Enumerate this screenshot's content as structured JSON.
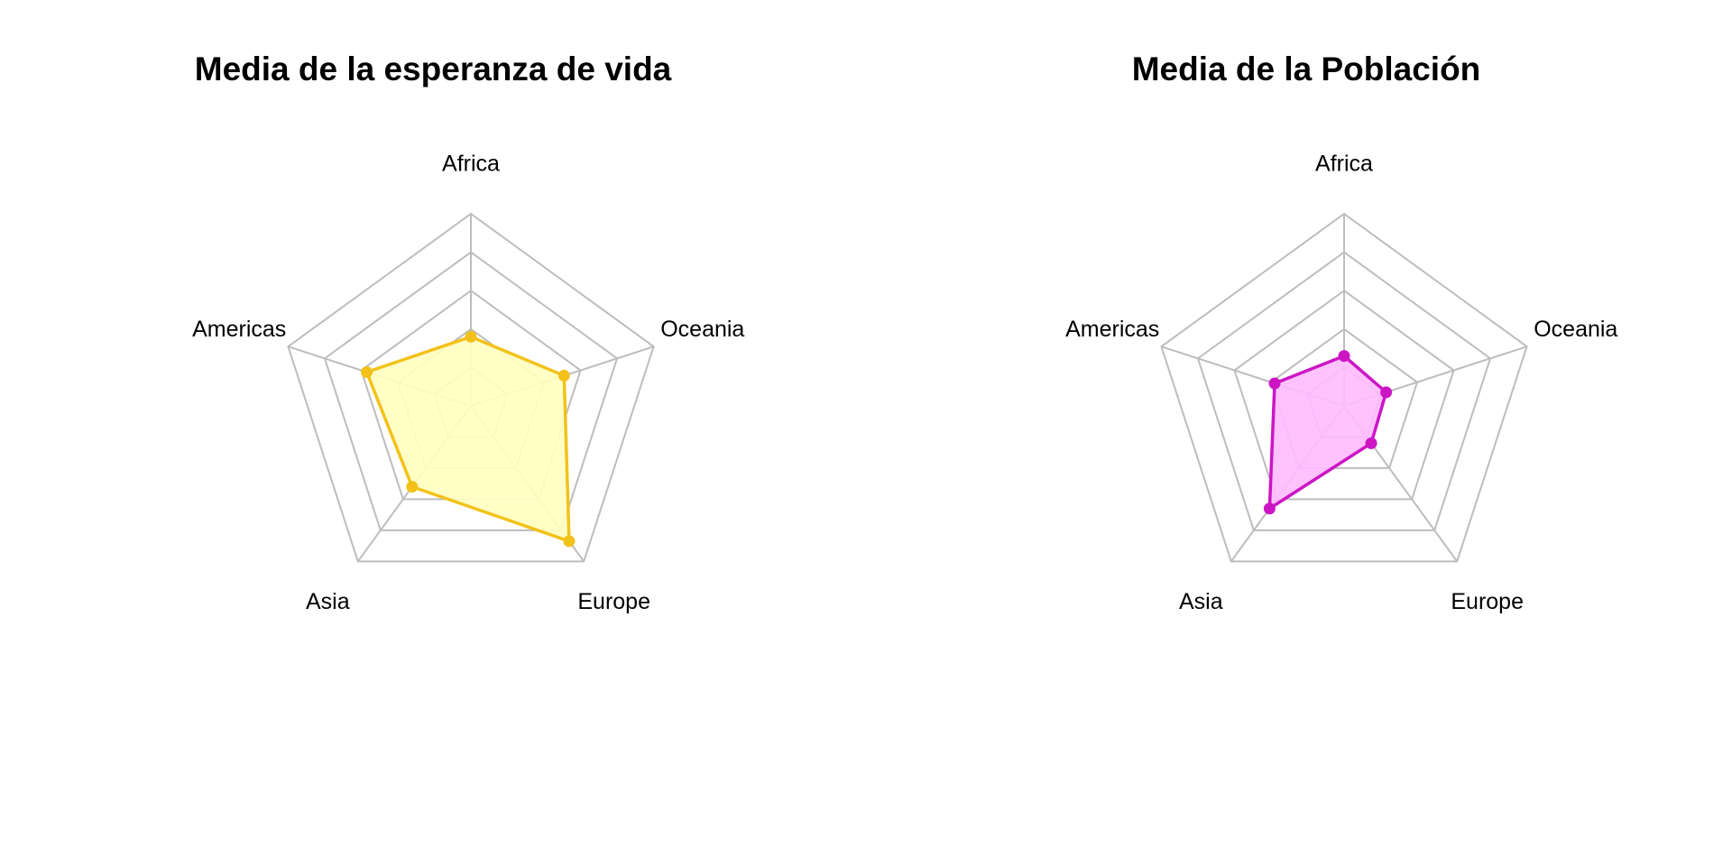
{
  "chart_data": [
    {
      "type": "radar",
      "title": "Media de la esperanza de vida",
      "axes": [
        "Africa",
        "Oceania",
        "Europe",
        "Asia",
        "Americas"
      ],
      "scale": [
        0,
        1
      ],
      "grid_levels": 5,
      "series": [
        {
          "values": [
            0.36,
            0.51,
            0.87,
            0.52,
            0.57
          ]
        }
      ],
      "colors": {
        "line": "#f2c21a",
        "fill": "#ffffc0",
        "grid": "#bdbdbd"
      }
    },
    {
      "type": "radar",
      "title": "Media de la Población",
      "axes": [
        "Africa",
        "Oceania",
        "Europe",
        "Asia",
        "Americas"
      ],
      "scale": [
        0,
        1
      ],
      "grid_levels": 5,
      "series": [
        {
          "values": [
            0.26,
            0.23,
            0.24,
            0.66,
            0.38
          ]
        }
      ],
      "colors": {
        "line": "#cc16c4",
        "fill": "#ffbbff",
        "grid": "#bdbdbd"
      }
    }
  ]
}
